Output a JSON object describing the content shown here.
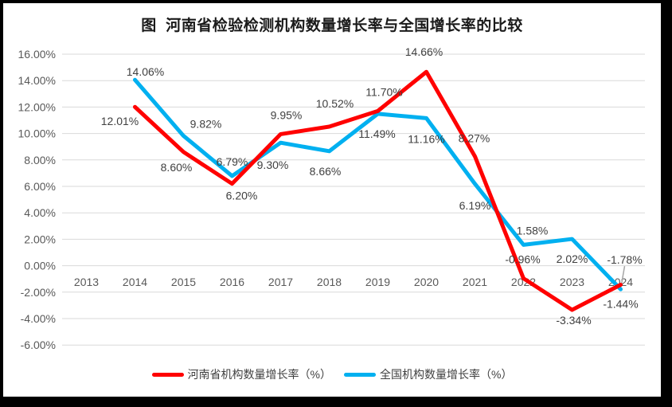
{
  "title": "图  河南省检验检测机构数量增长率与全国增长率的比较",
  "chart_data": {
    "type": "line",
    "title": "图  河南省检验检测机构数量增长率与全国增长率的比较",
    "categories": [
      "2013",
      "2014",
      "2015",
      "2016",
      "2017",
      "2018",
      "2019",
      "2020",
      "2021",
      "2022",
      "2023",
      "2024"
    ],
    "series": [
      {
        "name": "河南省机构数量增长率（%）",
        "color": "#FF0000",
        "values": [
          null,
          12.01,
          8.6,
          6.2,
          9.95,
          10.52,
          11.7,
          14.66,
          8.27,
          -0.96,
          -3.34,
          -1.44
        ],
        "labels": [
          "",
          "12.01%",
          "8.60%",
          "6.20%",
          "9.95%",
          "10.52%",
          "11.70%",
          "14.66%",
          "8.27%",
          "-0.96%",
          "-3.34%",
          "-1.44%"
        ]
      },
      {
        "name": "全国机构数量增长率（%）",
        "color": "#00B0F0",
        "values": [
          null,
          14.06,
          9.82,
          6.79,
          9.3,
          8.66,
          11.49,
          11.16,
          6.19,
          1.58,
          2.02,
          -1.78
        ],
        "labels": [
          "",
          "14.06%",
          "9.82%",
          "6.79%",
          "9.30%",
          "8.66%",
          "11.49%",
          "11.16%",
          "6.19%",
          "1.58%",
          "2.02%",
          "-1.78%"
        ]
      }
    ],
    "ylim": [
      -6,
      16
    ],
    "ytick_step": 2,
    "ytick_labels": [
      "16.00%",
      "14.00%",
      "12.00%",
      "10.00%",
      "8.00%",
      "6.00%",
      "4.00%",
      "2.00%",
      "0.00%",
      "-2.00%",
      "-4.00%",
      "-6.00%"
    ],
    "grid": true,
    "data_labels": true,
    "legend_position": "bottom",
    "colors": {
      "grid": "#D9D9D9",
      "axis_text": "#595959",
      "label_text": "#404040",
      "leader_line": "#A6A6A6",
      "background": "#FFFFFF",
      "frame": "#000000"
    }
  }
}
